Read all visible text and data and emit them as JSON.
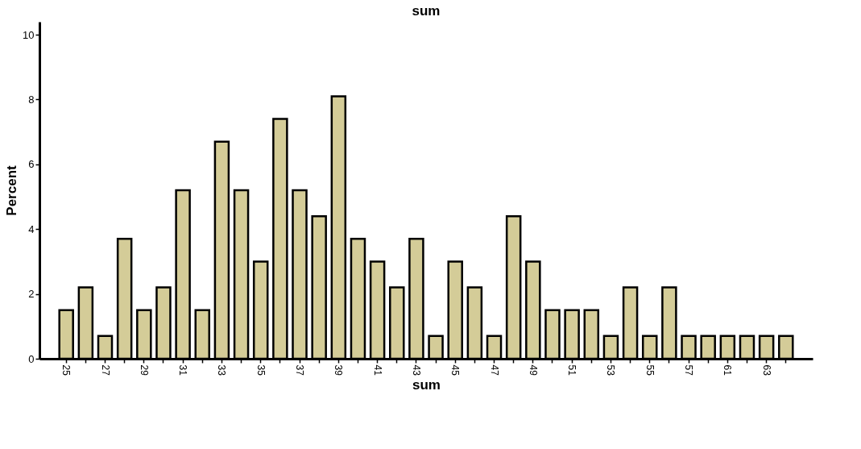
{
  "chart_data": {
    "type": "bar",
    "title": "sum",
    "xlabel": "sum",
    "ylabel": "Percent",
    "categories": [
      "25",
      null,
      "27",
      null,
      "29",
      null,
      "31",
      null,
      "33",
      null,
      "35",
      null,
      "37",
      null,
      "39",
      null,
      "41",
      null,
      "43",
      null,
      "45",
      null,
      "47",
      null,
      "49",
      null,
      "51",
      null,
      "53",
      null,
      "55",
      null,
      "57",
      null,
      "61",
      null,
      "63",
      null
    ],
    "values": [
      1.5,
      2.2,
      0.7,
      3.7,
      1.5,
      2.2,
      5.2,
      1.5,
      6.7,
      5.2,
      3.0,
      7.4,
      5.2,
      4.4,
      8.1,
      3.7,
      3.0,
      2.2,
      3.7,
      0.7,
      3.0,
      2.2,
      0.7,
      4.4,
      3.0,
      1.5,
      1.5,
      1.5,
      0.7,
      2.2,
      0.7,
      2.2,
      0.7,
      0.7,
      0.7,
      0.7,
      0.7,
      0.7
    ],
    "color": "#d4cc98",
    "ylim": [
      0,
      10.4
    ],
    "yticks": [
      0,
      2,
      4,
      6,
      8,
      10
    ],
    "grid": false
  }
}
